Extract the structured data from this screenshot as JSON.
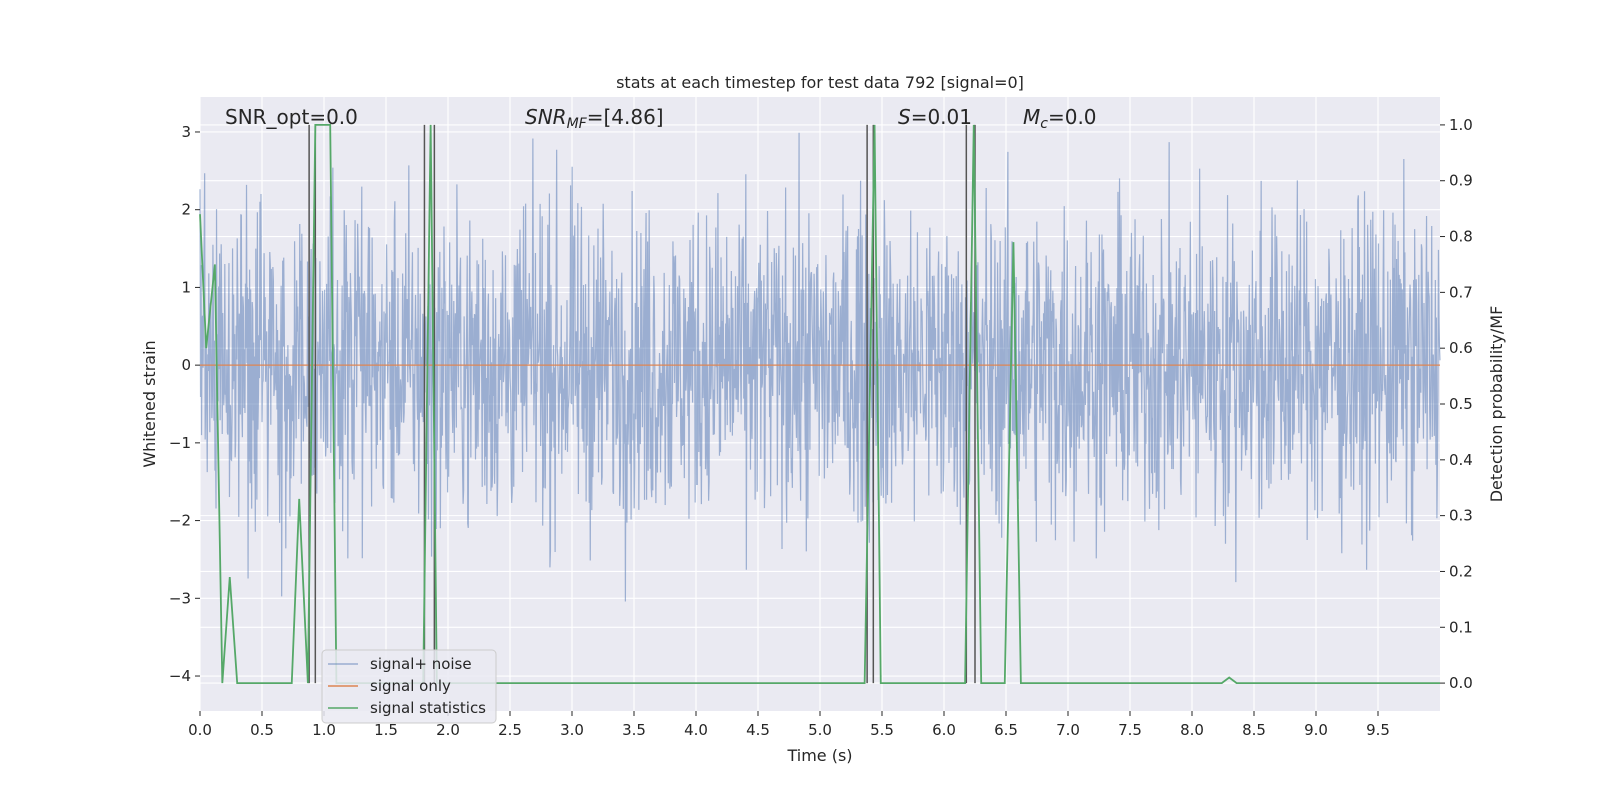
{
  "chart_data": {
    "type": "line",
    "title": "stats at each timestep for test data 792 [signal=0]",
    "xlabel": "Time (s)",
    "ylabel": "Whitened strain",
    "ylabel_right": "Detection probability/MF",
    "xlim": [
      0,
      10
    ],
    "ylim_left": [
      -4.45,
      3.45
    ],
    "ylim_right": [
      -0.05,
      1.05
    ],
    "x_ticks": [
      "0.0",
      "0.5",
      "1.0",
      "1.5",
      "2.0",
      "2.5",
      "3.0",
      "3.5",
      "4.0",
      "4.5",
      "5.0",
      "5.5",
      "6.0",
      "6.5",
      "7.0",
      "7.5",
      "8.0",
      "8.5",
      "9.0",
      "9.5"
    ],
    "y_ticks_left": [
      "3",
      "2",
      "1",
      "0",
      "−1",
      "−2",
      "−3",
      "−4"
    ],
    "y_ticks_right": [
      "1.0",
      "0.9",
      "0.8",
      "0.7",
      "0.6",
      "0.5",
      "0.4",
      "0.3",
      "0.2",
      "0.1",
      "0.0"
    ],
    "grid": true,
    "legend_position": "lower-left",
    "annotations": {
      "snr_opt": "SNR_opt=0.0",
      "snr_mf_label": "SNR",
      "snr_mf_sub": "MF",
      "snr_mf_value": "=[4.86]",
      "s_label": "S",
      "s_value": "=0.01",
      "mc_label": "M",
      "mc_sub": "c",
      "mc_value": "=0.0"
    },
    "colors": {
      "noise": "#4c72b0",
      "signal": "#dd8452",
      "stats": "#55a868",
      "vline": "#555555",
      "background": "#eaeaf2",
      "grid": "#ffffff"
    },
    "series": [
      {
        "name": "signal+ noise",
        "axis": "left",
        "description_range": [
          -3.5,
          3.1
        ],
        "noise_sigma": 1.0
      },
      {
        "name": "signal only",
        "axis": "left",
        "x": [
          0,
          10
        ],
        "y": [
          0,
          0
        ]
      },
      {
        "name": "signal statistics",
        "axis": "right",
        "x": [
          0.0,
          0.05,
          0.12,
          0.18,
          0.24,
          0.3,
          0.74,
          0.8,
          0.87,
          0.93,
          1.05,
          1.1,
          1.8,
          1.86,
          1.91,
          2.19,
          2.26,
          5.36,
          5.44,
          5.49,
          6.17,
          6.24,
          6.3,
          6.49,
          6.56,
          6.62,
          8.24,
          8.3,
          8.36,
          10.0
        ],
        "y": [
          0.84,
          0.6,
          0.75,
          0.0,
          0.19,
          0.0,
          0.0,
          0.33,
          0.0,
          1.0,
          1.0,
          0.0,
          0.0,
          1.0,
          0.0,
          0.0,
          0.0,
          0.0,
          1.0,
          0.0,
          0.0,
          1.0,
          0.0,
          0.0,
          0.79,
          0.0,
          0.0,
          0.01,
          0.0,
          0.0
        ]
      }
    ],
    "vlines": [
      0.88,
      0.93,
      1.81,
      1.89,
      5.38,
      5.43,
      6.18,
      6.25
    ]
  }
}
